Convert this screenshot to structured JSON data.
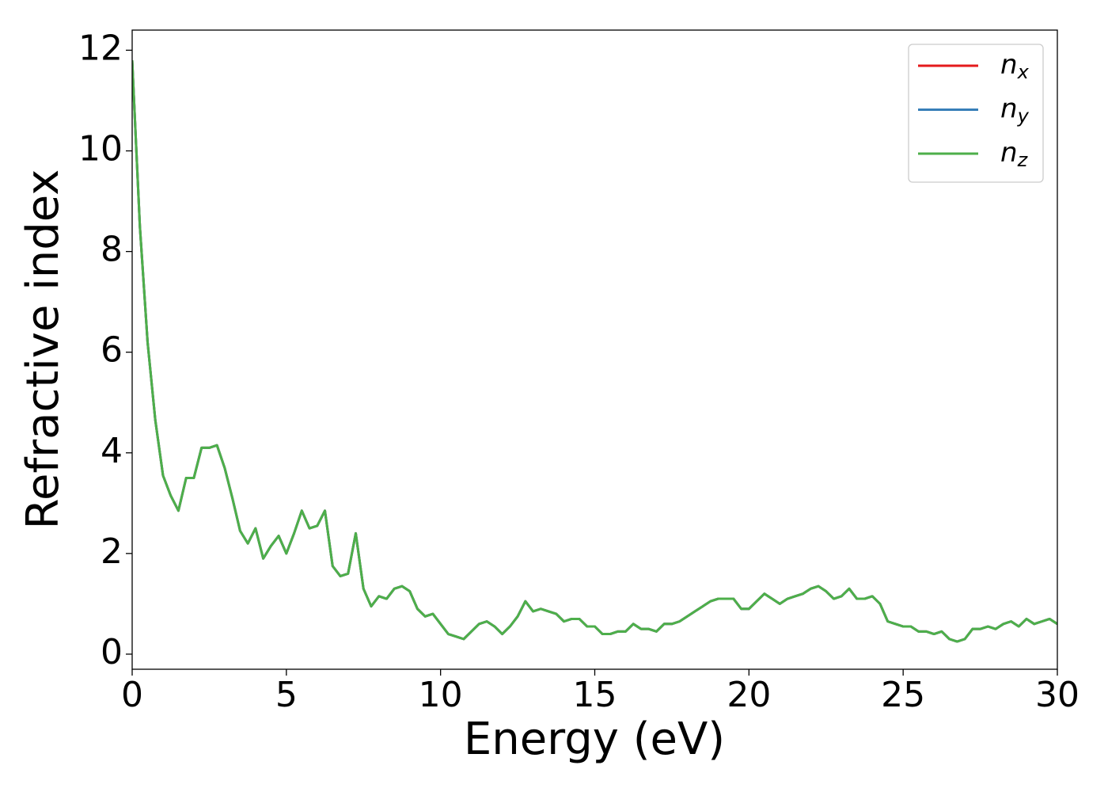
{
  "chart_data": {
    "type": "line",
    "xlabel": "Energy (eV)",
    "ylabel": "Refractive index",
    "x": [
      0,
      0.25,
      0.5,
      0.75,
      1,
      1.25,
      1.5,
      1.75,
      2,
      2.25,
      2.5,
      2.75,
      3,
      3.25,
      3.5,
      3.75,
      4,
      4.25,
      4.5,
      4.75,
      5,
      5.25,
      5.5,
      5.75,
      6,
      6.25,
      6.5,
      6.75,
      7,
      7.25,
      7.5,
      7.75,
      8,
      8.25,
      8.5,
      8.75,
      9,
      9.25,
      9.5,
      9.75,
      10,
      10.25,
      10.5,
      10.75,
      11,
      11.25,
      11.5,
      11.75,
      12,
      12.25,
      12.5,
      12.75,
      13,
      13.25,
      13.5,
      13.75,
      14,
      14.25,
      14.5,
      14.75,
      15,
      15.25,
      15.5,
      15.75,
      16,
      16.25,
      16.5,
      16.75,
      17,
      17.25,
      17.5,
      17.75,
      18,
      18.25,
      18.5,
      18.75,
      19,
      19.25,
      19.5,
      19.75,
      20,
      20.25,
      20.5,
      20.75,
      21,
      21.25,
      21.5,
      21.75,
      22,
      22.25,
      22.5,
      22.75,
      23,
      23.25,
      23.5,
      23.75,
      24,
      24.25,
      24.5,
      24.75,
      25,
      25.25,
      25.5,
      25.75,
      26,
      26.25,
      26.5,
      26.75,
      27,
      27.25,
      27.5,
      27.75,
      28,
      28.25,
      28.5,
      28.75,
      29,
      29.25,
      29.5,
      29.75,
      30
    ],
    "series": [
      {
        "name": "nx",
        "color": "#e41a1c",
        "values": [
          11.8,
          8.5,
          6.2,
          4.65,
          3.55,
          3.15,
          2.85,
          3.5,
          3.5,
          4.1,
          4.1,
          4.15,
          3.7,
          3.1,
          2.45,
          2.2,
          2.5,
          1.9,
          2.15,
          2.35,
          2.0,
          2.4,
          2.85,
          2.5,
          2.55,
          2.85,
          1.75,
          1.55,
          1.6,
          2.4,
          1.3,
          0.95,
          1.15,
          1.1,
          1.3,
          1.35,
          1.25,
          0.9,
          0.75,
          0.8,
          0.6,
          0.4,
          0.35,
          0.3,
          0.45,
          0.6,
          0.65,
          0.55,
          0.4,
          0.55,
          0.75,
          1.05,
          0.85,
          0.9,
          0.85,
          0.8,
          0.65,
          0.7,
          0.7,
          0.55,
          0.55,
          0.4,
          0.4,
          0.45,
          0.45,
          0.6,
          0.5,
          0.5,
          0.45,
          0.6,
          0.6,
          0.65,
          0.75,
          0.85,
          0.95,
          1.05,
          1.1,
          1.1,
          1.1,
          0.9,
          0.9,
          1.05,
          1.2,
          1.1,
          1.0,
          1.1,
          1.15,
          1.2,
          1.3,
          1.35,
          1.25,
          1.1,
          1.15,
          1.3,
          1.1,
          1.1,
          1.15,
          1.0,
          0.65,
          0.6,
          0.55,
          0.55,
          0.45,
          0.45,
          0.4,
          0.45,
          0.3,
          0.25,
          0.3,
          0.5,
          0.5,
          0.55,
          0.5,
          0.6,
          0.65,
          0.55,
          0.7,
          0.6,
          0.65,
          0.7,
          0.6
        ]
      },
      {
        "name": "ny",
        "color": "#377eb8",
        "values": [
          11.8,
          8.5,
          6.2,
          4.65,
          3.55,
          3.15,
          2.85,
          3.5,
          3.5,
          4.1,
          4.1,
          4.15,
          3.7,
          3.1,
          2.45,
          2.2,
          2.5,
          1.9,
          2.15,
          2.35,
          2.0,
          2.4,
          2.85,
          2.5,
          2.55,
          2.85,
          1.75,
          1.55,
          1.6,
          2.4,
          1.3,
          0.95,
          1.15,
          1.1,
          1.3,
          1.35,
          1.25,
          0.9,
          0.75,
          0.8,
          0.6,
          0.4,
          0.35,
          0.3,
          0.45,
          0.6,
          0.65,
          0.55,
          0.4,
          0.55,
          0.75,
          1.05,
          0.85,
          0.9,
          0.85,
          0.8,
          0.65,
          0.7,
          0.7,
          0.55,
          0.55,
          0.4,
          0.4,
          0.45,
          0.45,
          0.6,
          0.5,
          0.5,
          0.45,
          0.6,
          0.6,
          0.65,
          0.75,
          0.85,
          0.95,
          1.05,
          1.1,
          1.1,
          1.1,
          0.9,
          0.9,
          1.05,
          1.2,
          1.1,
          1.0,
          1.1,
          1.15,
          1.2,
          1.3,
          1.35,
          1.25,
          1.1,
          1.15,
          1.3,
          1.1,
          1.1,
          1.15,
          1.0,
          0.65,
          0.6,
          0.55,
          0.55,
          0.45,
          0.45,
          0.4,
          0.45,
          0.3,
          0.25,
          0.3,
          0.5,
          0.5,
          0.55,
          0.5,
          0.6,
          0.65,
          0.55,
          0.7,
          0.6,
          0.65,
          0.7,
          0.6
        ]
      },
      {
        "name": "nz",
        "color": "#4daf4a",
        "values": [
          11.8,
          8.5,
          6.2,
          4.65,
          3.55,
          3.15,
          2.85,
          3.5,
          3.5,
          4.1,
          4.1,
          4.15,
          3.7,
          3.1,
          2.45,
          2.2,
          2.5,
          1.9,
          2.15,
          2.35,
          2.0,
          2.4,
          2.85,
          2.5,
          2.55,
          2.85,
          1.75,
          1.55,
          1.6,
          2.4,
          1.3,
          0.95,
          1.15,
          1.1,
          1.3,
          1.35,
          1.25,
          0.9,
          0.75,
          0.8,
          0.6,
          0.4,
          0.35,
          0.3,
          0.45,
          0.6,
          0.65,
          0.55,
          0.4,
          0.55,
          0.75,
          1.05,
          0.85,
          0.9,
          0.85,
          0.8,
          0.65,
          0.7,
          0.7,
          0.55,
          0.55,
          0.4,
          0.4,
          0.45,
          0.45,
          0.6,
          0.5,
          0.5,
          0.45,
          0.6,
          0.6,
          0.65,
          0.75,
          0.85,
          0.95,
          1.05,
          1.1,
          1.1,
          1.1,
          0.9,
          0.9,
          1.05,
          1.2,
          1.1,
          1.0,
          1.1,
          1.15,
          1.2,
          1.3,
          1.35,
          1.25,
          1.1,
          1.15,
          1.3,
          1.1,
          1.1,
          1.15,
          1.0,
          0.65,
          0.6,
          0.55,
          0.55,
          0.45,
          0.45,
          0.4,
          0.45,
          0.3,
          0.25,
          0.3,
          0.5,
          0.5,
          0.55,
          0.5,
          0.6,
          0.65,
          0.55,
          0.7,
          0.6,
          0.65,
          0.7,
          0.6
        ]
      }
    ],
    "xlim": [
      0,
      30
    ],
    "xticks": [
      0,
      5,
      10,
      15,
      20,
      25,
      30
    ],
    "ylim": [
      -0.3,
      12.4
    ],
    "yticks": [
      0,
      2,
      4,
      6,
      8,
      10,
      12
    ],
    "grid": false,
    "legend": "upper right"
  }
}
